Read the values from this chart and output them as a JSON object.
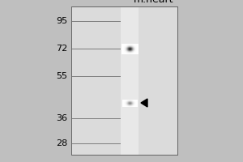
{
  "title": "m.heart",
  "mw_markers": [
    95,
    72,
    55,
    36,
    28
  ],
  "fig_width": 3.0,
  "fig_height": 2.0,
  "dpi": 100,
  "bg_color": "#c0c0c0",
  "gel_bg": "#d8d8d8",
  "lane_color": "#e0e0e0",
  "band1_mw": 72,
  "band2_mw": 42,
  "arrow_mw": 42,
  "title_text": "m.heart",
  "title_fontsize": 9,
  "marker_fontsize": 8
}
